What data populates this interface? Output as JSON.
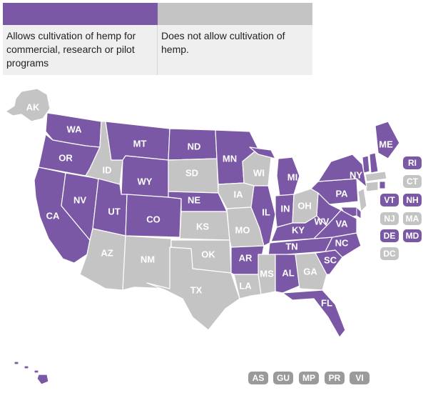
{
  "colors": {
    "allow": "#7b58a6",
    "deny": "#c4c4c4",
    "border": "#ffffff"
  },
  "legend": {
    "allow_text": "Allows cultivation of hemp for commercial, research or pilot programs",
    "deny_text": "Does not allow cultivation of hemp."
  },
  "states": [
    {
      "abbr": "AK",
      "status": "deny"
    },
    {
      "abbr": "WA",
      "status": "allow"
    },
    {
      "abbr": "OR",
      "status": "allow"
    },
    {
      "abbr": "CA",
      "status": "allow"
    },
    {
      "abbr": "NV",
      "status": "allow"
    },
    {
      "abbr": "ID",
      "status": "deny"
    },
    {
      "abbr": "MT",
      "status": "allow"
    },
    {
      "abbr": "WY",
      "status": "allow"
    },
    {
      "abbr": "UT",
      "status": "allow"
    },
    {
      "abbr": "AZ",
      "status": "deny"
    },
    {
      "abbr": "CO",
      "status": "allow"
    },
    {
      "abbr": "NM",
      "status": "deny"
    },
    {
      "abbr": "ND",
      "status": "allow"
    },
    {
      "abbr": "SD",
      "status": "deny"
    },
    {
      "abbr": "NE",
      "status": "allow"
    },
    {
      "abbr": "KS",
      "status": "deny"
    },
    {
      "abbr": "OK",
      "status": "deny"
    },
    {
      "abbr": "TX",
      "status": "deny"
    },
    {
      "abbr": "MN",
      "status": "allow"
    },
    {
      "abbr": "IA",
      "status": "deny"
    },
    {
      "abbr": "MO",
      "status": "deny"
    },
    {
      "abbr": "AR",
      "status": "allow"
    },
    {
      "abbr": "LA",
      "status": "deny"
    },
    {
      "abbr": "WI",
      "status": "deny"
    },
    {
      "abbr": "IL",
      "status": "allow"
    },
    {
      "abbr": "MI",
      "status": "allow"
    },
    {
      "abbr": "IN",
      "status": "allow"
    },
    {
      "abbr": "OH",
      "status": "deny"
    },
    {
      "abbr": "KY",
      "status": "allow"
    },
    {
      "abbr": "TN",
      "status": "allow"
    },
    {
      "abbr": "MS",
      "status": "deny"
    },
    {
      "abbr": "AL",
      "status": "allow"
    },
    {
      "abbr": "GA",
      "status": "deny"
    },
    {
      "abbr": "FL",
      "status": "allow"
    },
    {
      "abbr": "SC",
      "status": "allow"
    },
    {
      "abbr": "NC",
      "status": "allow"
    },
    {
      "abbr": "VA",
      "status": "allow"
    },
    {
      "abbr": "WV",
      "status": "allow"
    },
    {
      "abbr": "PA",
      "status": "allow"
    },
    {
      "abbr": "NY",
      "status": "allow"
    },
    {
      "abbr": "ME",
      "status": "allow"
    },
    {
      "abbr": "HI",
      "status": "allow"
    }
  ],
  "small_states": [
    {
      "abbr": "RI",
      "status": "allow"
    },
    {
      "abbr": "CT",
      "status": "deny"
    },
    {
      "abbr": "VT",
      "status": "allow"
    },
    {
      "abbr": "NH",
      "status": "allow"
    },
    {
      "abbr": "NJ",
      "status": "deny"
    },
    {
      "abbr": "MA",
      "status": "deny"
    },
    {
      "abbr": "DE",
      "status": "allow"
    },
    {
      "abbr": "MD",
      "status": "allow"
    },
    {
      "abbr": "DC",
      "status": "deny"
    }
  ],
  "territories": [
    {
      "abbr": "AS",
      "status": "territory"
    },
    {
      "abbr": "GU",
      "status": "territory"
    },
    {
      "abbr": "MP",
      "status": "territory"
    },
    {
      "abbr": "PR",
      "status": "territory"
    },
    {
      "abbr": "VI",
      "status": "territory"
    }
  ],
  "territory_color": "#9a9a9a"
}
